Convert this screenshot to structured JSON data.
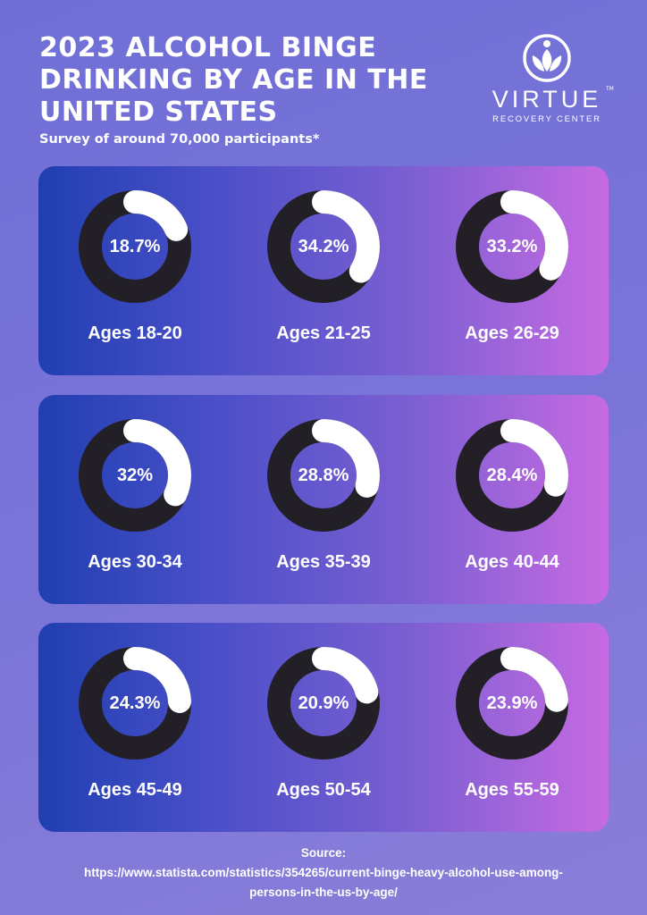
{
  "header": {
    "title": "2023 ALCOHOL BINGE DRINKING BY AGE IN THE UNITED STATES",
    "subtitle": "Survey of around 70,000 participants*"
  },
  "logo": {
    "word": "VIRTUE",
    "tm": "TM",
    "sub": "RECOVERY CENTER"
  },
  "colors": {
    "ring_track": "#222026",
    "ring_fill": "#ffffff",
    "panel_start": "#1f3fb0",
    "panel_end": "#c76ae2",
    "background": "#7a74d8"
  },
  "chart_data": {
    "type": "donut",
    "title": "2023 ALCOHOL BINGE DRINKING BY AGE IN THE UNITED STATES",
    "categories": [
      "Ages 18-20",
      "Ages 21-25",
      "Ages 26-29",
      "Ages 30-34",
      "Ages 35-39",
      "Ages 40-44",
      "Ages 45-49",
      "Ages 50-54",
      "Ages 55-59"
    ],
    "values": [
      18.7,
      34.2,
      33.2,
      32,
      28.8,
      28.4,
      24.3,
      20.9,
      23.9
    ],
    "value_labels": [
      "18.7%",
      "34.2%",
      "33.2%",
      "32%",
      "28.8%",
      "28.4%",
      "24.3%",
      "20.9%",
      "23.9%"
    ],
    "unit": "%"
  },
  "source": {
    "label": "Source:",
    "url_line1": "https://www.statista.com/statistics/354265/current-binge-heavy-alcohol-use-among-",
    "url_line2": "persons-in-the-us-by-age/"
  }
}
